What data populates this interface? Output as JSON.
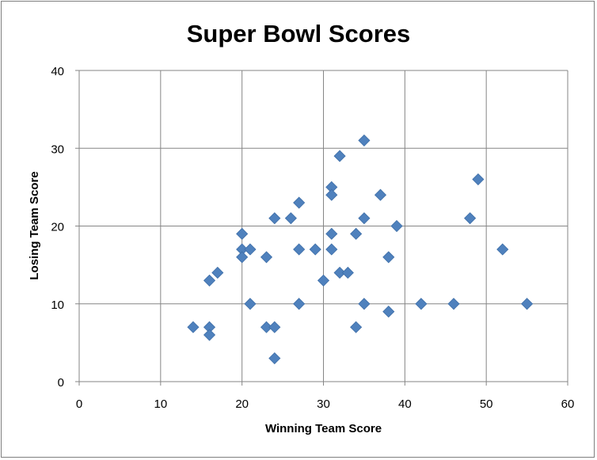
{
  "chart_data": {
    "type": "scatter",
    "title": "Super Bowl Scores",
    "xlabel": "Winning Team Score",
    "ylabel": "Losing Team Score",
    "xlim": [
      0,
      60
    ],
    "ylim": [
      0,
      40
    ],
    "xticks": [
      "0",
      "10",
      "20",
      "30",
      "40",
      "50",
      "60"
    ],
    "yticks": [
      "0",
      "10",
      "20",
      "30",
      "40"
    ],
    "grid": true,
    "marker": "diamond",
    "marker_color": "#4f81bd",
    "points": [
      [
        14,
        7
      ],
      [
        16,
        13
      ],
      [
        16,
        7
      ],
      [
        16,
        6
      ],
      [
        17,
        14
      ],
      [
        20,
        19
      ],
      [
        20,
        17
      ],
      [
        20,
        16
      ],
      [
        21,
        17
      ],
      [
        21,
        10
      ],
      [
        23,
        16
      ],
      [
        23,
        7
      ],
      [
        24,
        21
      ],
      [
        24,
        7
      ],
      [
        24,
        3
      ],
      [
        26,
        21
      ],
      [
        27,
        23
      ],
      [
        27,
        17
      ],
      [
        27,
        10
      ],
      [
        29,
        17
      ],
      [
        30,
        13
      ],
      [
        31,
        25
      ],
      [
        31,
        24
      ],
      [
        31,
        19
      ],
      [
        31,
        17
      ],
      [
        32,
        29
      ],
      [
        32,
        14
      ],
      [
        33,
        14
      ],
      [
        34,
        19
      ],
      [
        34,
        7
      ],
      [
        35,
        31
      ],
      [
        35,
        21
      ],
      [
        35,
        10
      ],
      [
        37,
        24
      ],
      [
        38,
        16
      ],
      [
        38,
        9
      ],
      [
        39,
        20
      ],
      [
        42,
        10
      ],
      [
        46,
        10
      ],
      [
        48,
        21
      ],
      [
        49,
        26
      ],
      [
        52,
        17
      ],
      [
        55,
        10
      ]
    ]
  }
}
